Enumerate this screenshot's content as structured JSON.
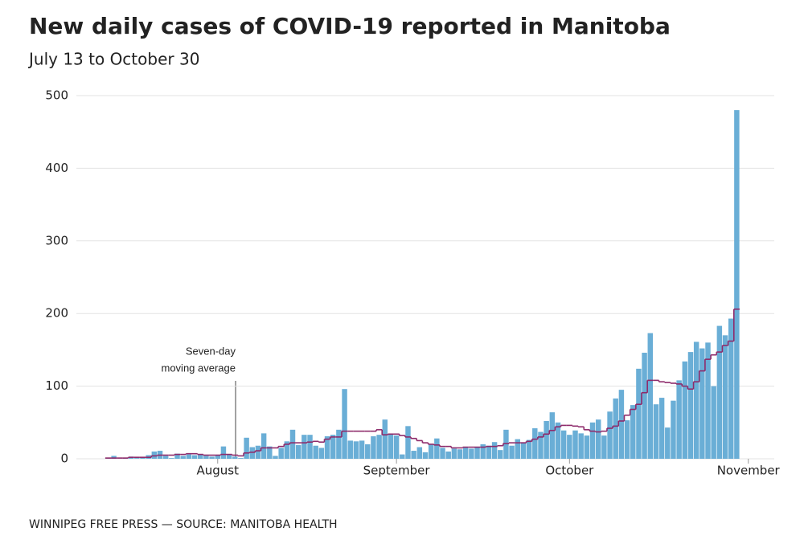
{
  "chart_data": {
    "type": "bar",
    "title": "New daily cases of COVID-19 reported in Manitoba",
    "subtitle": "July 13 to October 30",
    "source": "WINNIPEG FREE PRESS — SOURCE: MANITOBA HEALTH",
    "annotation": [
      "Seven-day",
      "moving average"
    ],
    "x": [
      0,
      1,
      2,
      3,
      4,
      5,
      6,
      7,
      8,
      9,
      10,
      11,
      12,
      13,
      14,
      15,
      16,
      17,
      18,
      19,
      20,
      21,
      22,
      23,
      24,
      25,
      26,
      27,
      28,
      29,
      30,
      31,
      32,
      33,
      34,
      35,
      36,
      37,
      38,
      39,
      40,
      41,
      42,
      43,
      44,
      45,
      46,
      47,
      48,
      49,
      50,
      51,
      52,
      53,
      54,
      55,
      56,
      57,
      58,
      59,
      60,
      61,
      62,
      63,
      64,
      65,
      66,
      67,
      68,
      69,
      70,
      71,
      72,
      73,
      74,
      75,
      76,
      77,
      78,
      79,
      80,
      81,
      82,
      83,
      84,
      85,
      86,
      87,
      88,
      89,
      90,
      91,
      92,
      93,
      94,
      95,
      96,
      97,
      98,
      99,
      100,
      101,
      102,
      103,
      104,
      105,
      106,
      107,
      108,
      109
    ],
    "series": [
      {
        "name": "New daily cases",
        "color": "#6aaed6",
        "values": [
          1,
          4,
          0,
          1,
          3,
          1,
          2,
          5,
          10,
          11,
          4,
          1,
          7,
          4,
          6,
          5,
          6,
          4,
          3,
          5,
          17,
          6,
          3,
          1,
          29,
          16,
          18,
          35,
          17,
          4,
          15,
          24,
          40,
          19,
          33,
          33,
          18,
          15,
          31,
          33,
          40,
          96,
          25,
          24,
          25,
          20,
          31,
          33,
          54,
          34,
          32,
          6,
          45,
          11,
          16,
          9,
          20,
          28,
          15,
          10,
          14,
          13,
          16,
          14,
          16,
          20,
          18,
          23,
          12,
          40,
          18,
          27,
          22,
          26,
          42,
          37,
          52,
          64,
          50,
          39,
          33,
          39,
          35,
          32,
          50,
          54,
          32,
          65,
          83,
          95,
          53,
          74,
          124,
          146,
          173,
          75,
          84,
          43,
          80,
          108,
          134,
          147,
          161,
          152,
          160,
          100,
          183,
          170,
          193,
          480
        ]
      },
      {
        "name": "Seven-day moving average",
        "color": "#8e2b6b",
        "values": [
          1,
          1,
          1,
          1,
          2,
          2,
          2,
          2,
          4,
          5,
          5,
          5,
          6,
          6,
          7,
          7,
          6,
          5,
          5,
          5,
          6,
          6,
          5,
          4,
          8,
          9,
          11,
          15,
          15,
          15,
          17,
          20,
          22,
          22,
          22,
          23,
          24,
          23,
          27,
          30,
          30,
          38,
          38,
          38,
          38,
          38,
          38,
          40,
          33,
          34,
          34,
          32,
          30,
          28,
          25,
          22,
          20,
          19,
          17,
          17,
          15,
          15,
          16,
          16,
          16,
          16,
          17,
          17,
          18,
          21,
          22,
          22,
          22,
          24,
          27,
          30,
          34,
          39,
          44,
          46,
          46,
          45,
          44,
          40,
          38,
          37,
          38,
          42,
          45,
          52,
          60,
          68,
          75,
          91,
          108,
          108,
          106,
          105,
          104,
          103,
          100,
          96,
          106,
          121,
          137,
          143,
          147,
          156,
          162,
          206
        ]
      }
    ],
    "xlim": [
      -5.5,
      115.5
    ],
    "xticks": [
      {
        "value": 19,
        "label": "August"
      },
      {
        "value": 50,
        "label": "September"
      },
      {
        "value": 80,
        "label": "October"
      },
      {
        "value": 111,
        "label": "November"
      }
    ],
    "ylim": [
      0,
      500
    ],
    "yticks": [
      0,
      100,
      200,
      300,
      400,
      500
    ],
    "grid": true
  }
}
